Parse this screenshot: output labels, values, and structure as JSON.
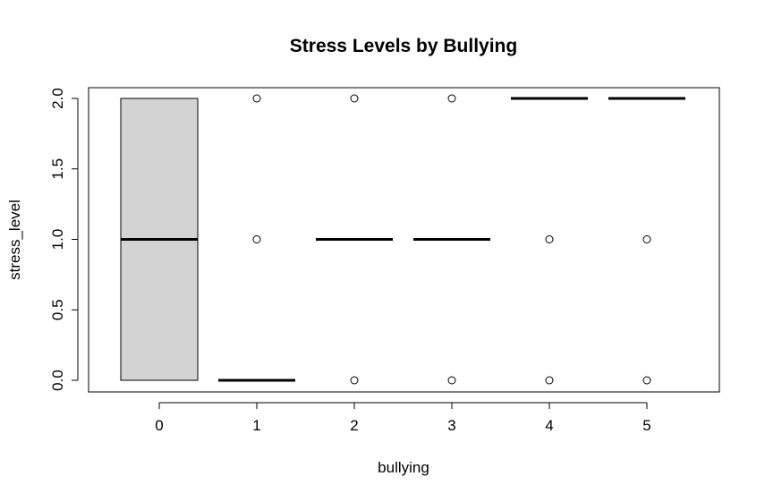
{
  "chart_data": {
    "type": "boxplot",
    "title": "Stress Levels by Bullying",
    "xlabel": "bullying",
    "ylabel": "stress_level",
    "categories": [
      "0",
      "1",
      "2",
      "3",
      "4",
      "5"
    ],
    "ylim": [
      0,
      2
    ],
    "yticks": [
      "0.0",
      "0.5",
      "1.0",
      "1.5",
      "2.0"
    ],
    "boxes": [
      {
        "category": "0",
        "min": 0,
        "q1": 0,
        "median": 1,
        "q3": 2,
        "max": 2,
        "outliers": []
      },
      {
        "category": "1",
        "min": 0,
        "q1": 0,
        "median": 0,
        "q3": 0,
        "max": 0,
        "outliers": [
          1,
          2
        ]
      },
      {
        "category": "2",
        "min": 1,
        "q1": 1,
        "median": 1,
        "q3": 1,
        "max": 1,
        "outliers": [
          0,
          2
        ]
      },
      {
        "category": "3",
        "min": 1,
        "q1": 1,
        "median": 1,
        "q3": 1,
        "max": 1,
        "outliers": [
          0,
          2
        ]
      },
      {
        "category": "4",
        "min": 2,
        "q1": 2,
        "median": 2,
        "q3": 2,
        "max": 2,
        "outliers": [
          0,
          1
        ]
      },
      {
        "category": "5",
        "min": 2,
        "q1": 2,
        "median": 2,
        "q3": 2,
        "max": 2,
        "outliers": [
          0,
          1
        ]
      }
    ],
    "box_fill": "#d3d3d3",
    "grid": false
  }
}
